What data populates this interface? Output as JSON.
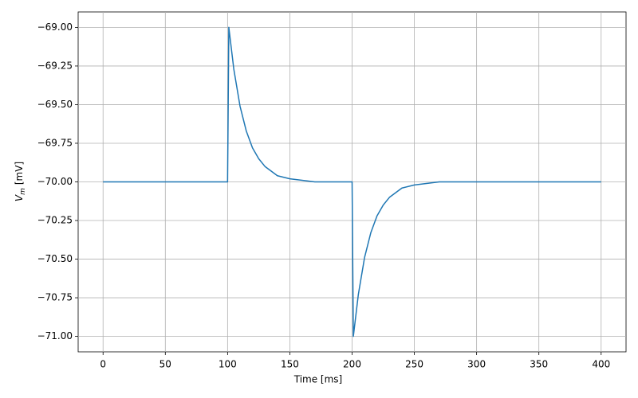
{
  "chart_data": {
    "type": "line",
    "x_label": "Time [ms]",
    "y_label": {
      "symbol": "V",
      "subscript": "m",
      "unit": "[mV]"
    },
    "x": [
      0,
      100,
      101,
      105,
      110,
      115,
      120,
      125,
      130,
      140,
      150,
      170,
      200,
      201,
      205,
      210,
      215,
      220,
      225,
      230,
      240,
      250,
      270,
      400
    ],
    "series": [
      {
        "color": "#1f77b4",
        "values": [
          -70,
          -70,
          -69,
          -69.27,
          -69.51,
          -69.67,
          -69.78,
          -69.85,
          -69.9,
          -69.96,
          -69.98,
          -70,
          -70,
          -71,
          -70.73,
          -70.49,
          -70.33,
          -70.22,
          -70.15,
          -70.1,
          -70.04,
          -70.02,
          -70,
          -70
        ]
      }
    ],
    "xlim": [
      -20,
      420
    ],
    "ylim": [
      -71.1,
      -68.9
    ],
    "xticks": [
      0,
      50,
      100,
      150,
      200,
      250,
      300,
      350,
      400
    ],
    "yticks": [
      {
        "value": -69,
        "label": "−69.00"
      },
      {
        "value": -69.25,
        "label": "−69.25"
      },
      {
        "value": -69.5,
        "label": "−69.50"
      },
      {
        "value": -69.75,
        "label": "−69.75"
      },
      {
        "value": -70,
        "label": "−70.00"
      },
      {
        "value": -70.25,
        "label": "−70.25"
      },
      {
        "value": -70.5,
        "label": "−70.50"
      },
      {
        "value": -70.75,
        "label": "−70.75"
      },
      {
        "value": -71,
        "label": "−71.00"
      }
    ],
    "grid": true
  }
}
